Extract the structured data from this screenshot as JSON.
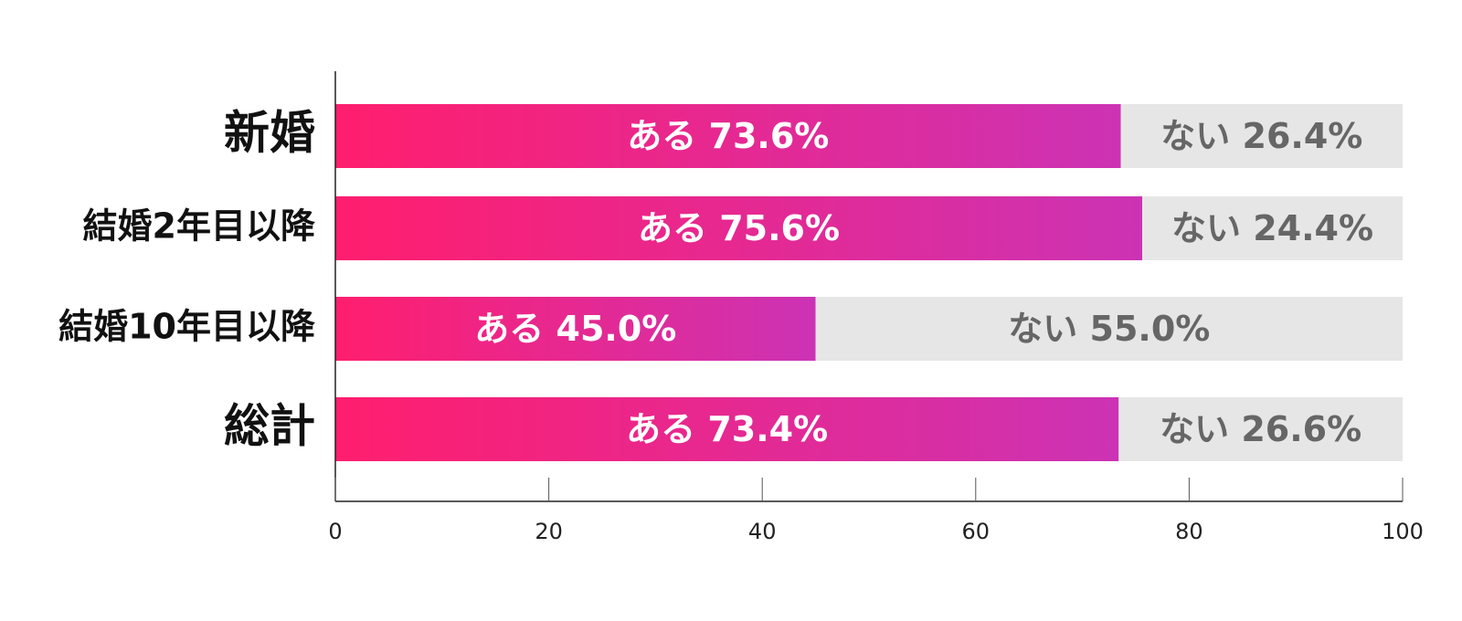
{
  "chart_data": {
    "type": "stacked-barh",
    "categories": [
      "新婚",
      "結婚2年目以降",
      "結婚10年目以降",
      "総計"
    ],
    "series": [
      {
        "name": "ある",
        "color": "#ff1e6e",
        "values": [
          73.6,
          75.6,
          45.0,
          73.4
        ],
        "value_labels": [
          "73.6%",
          "75.6%",
          "45.0%",
          "73.4%"
        ]
      },
      {
        "name": "ない",
        "color": "#e6e6e6",
        "values": [
          26.4,
          24.4,
          55.0,
          26.6
        ],
        "value_labels": [
          "26.4%",
          "24.4%",
          "55.0%",
          "26.6%"
        ]
      }
    ],
    "xlim": [
      0,
      100
    ],
    "xticks": [
      0,
      20,
      40,
      60,
      80,
      100
    ]
  }
}
